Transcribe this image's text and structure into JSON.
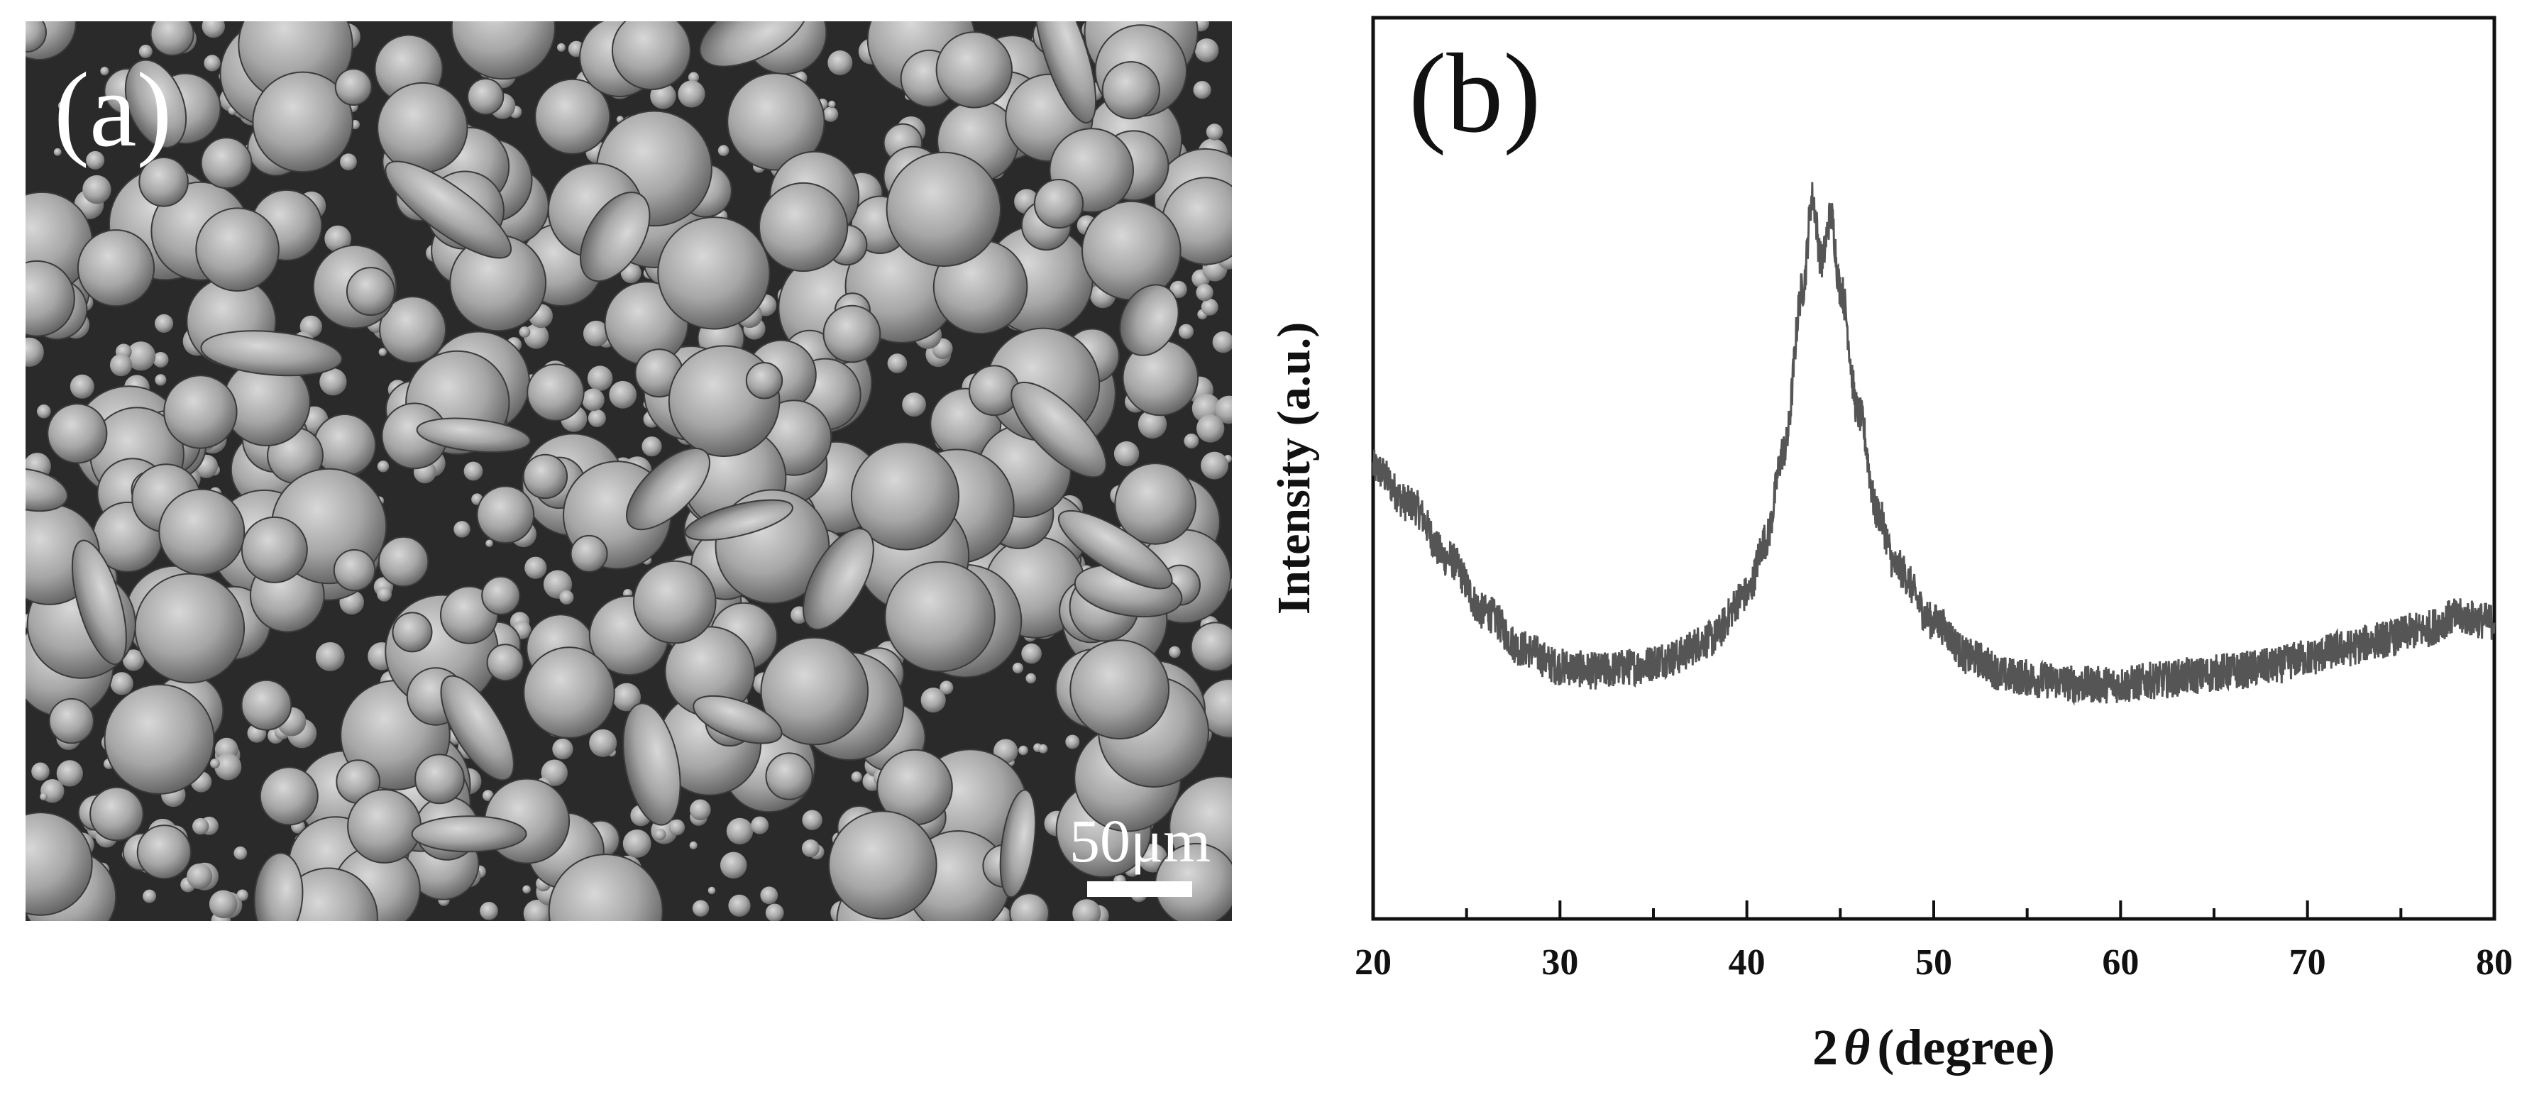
{
  "panel_a": {
    "label": "(a)",
    "scale_bar_label": "50μm"
  },
  "chart_data": {
    "type": "line",
    "panel_label": "(b)",
    "title": "",
    "xlabel": "2θ (degree)",
    "xlabel_prefix": "2",
    "xlabel_symbol": "θ",
    "xlabel_suffix": "(degree)",
    "ylabel": "Intensity (a.u.)",
    "xlim": [
      20,
      80
    ],
    "ylim": [
      0,
      100
    ],
    "x_ticks": [
      20,
      30,
      40,
      50,
      60,
      70,
      80
    ],
    "y_ticks": [],
    "grid": false,
    "legend": "none",
    "line_color": "#555555",
    "series": [
      {
        "x": [
          20,
          22,
          24,
          26,
          28,
          30,
          32,
          34,
          36,
          38,
          40,
          41,
          42,
          43,
          43.5,
          44,
          44.5,
          45,
          46,
          47,
          48,
          50,
          52,
          54,
          56,
          58,
          60,
          62,
          64,
          66,
          68,
          70,
          72,
          74,
          76,
          78,
          80
        ],
        "y": [
          50,
          46,
          40,
          34,
          30,
          28,
          27.5,
          28,
          29,
          31,
          36,
          42,
          52,
          70,
          80,
          73,
          78,
          70,
          56,
          45,
          39,
          33,
          29,
          27,
          26.5,
          26,
          26,
          26.5,
          27,
          27.5,
          28,
          29,
          30,
          31,
          32,
          33.5,
          33
        ]
      }
    ]
  }
}
